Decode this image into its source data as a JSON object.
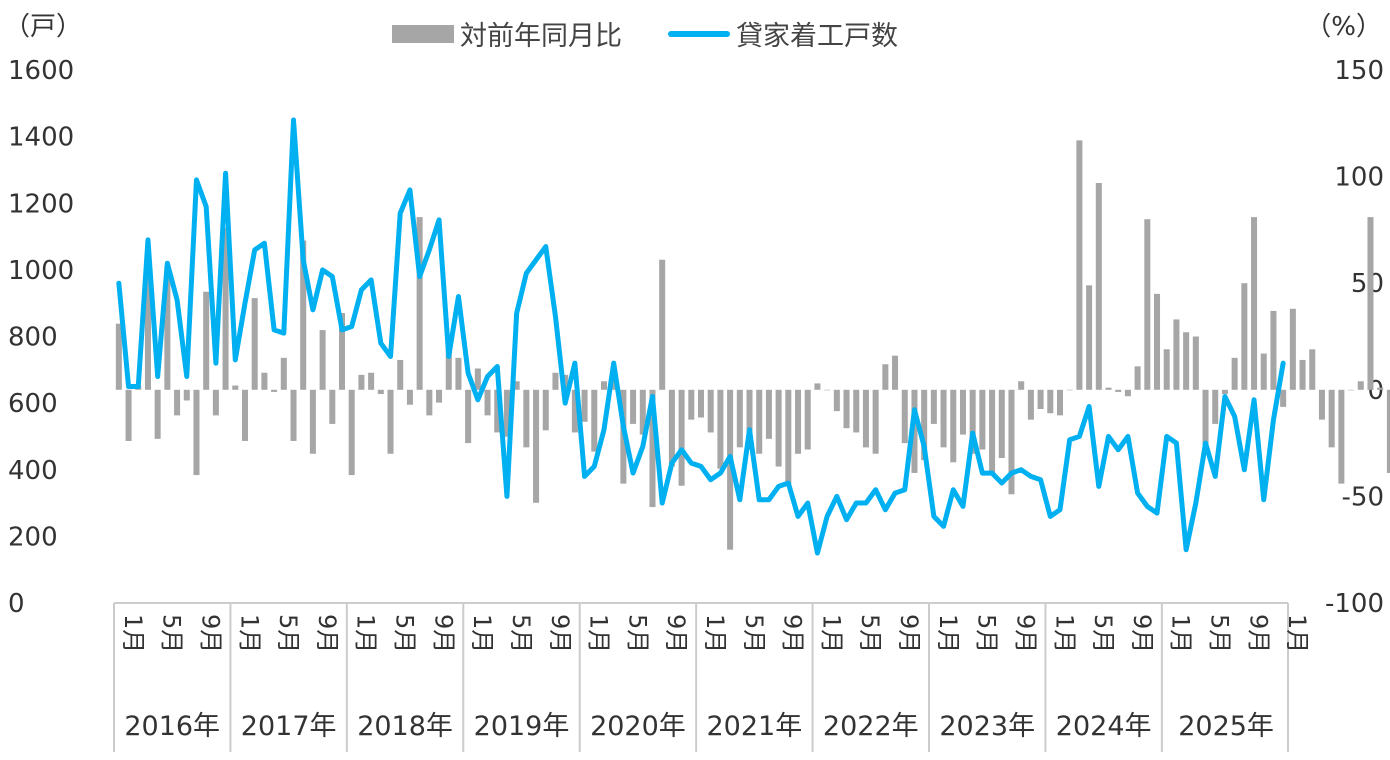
{
  "chart_data": {
    "type": "bar+line",
    "legend": {
      "bar_label": "対前年同月比",
      "line_label": "貸家着工戸数",
      "placement": "top-center"
    },
    "colors": {
      "bar": "#a6a6a6",
      "line": "#00b0f0",
      "axis": "#cccccc",
      "text": "#333333"
    },
    "left_axis": {
      "unit": "（戸）",
      "min": 0,
      "max": 1600,
      "ticks": [
        "0",
        "200",
        "400",
        "600",
        "800",
        "1000",
        "1200",
        "1400",
        "1600"
      ]
    },
    "right_axis": {
      "unit": "（%）",
      "min": -100,
      "max": 150,
      "ticks": [
        "-100",
        "-50",
        "0",
        "50",
        "100",
        "150"
      ]
    },
    "years": [
      {
        "label": "2016年",
        "months": 12
      },
      {
        "label": "2017年",
        "months": 12
      },
      {
        "label": "2018年",
        "months": 12
      },
      {
        "label": "2019年",
        "months": 12
      },
      {
        "label": "2020年",
        "months": 12
      },
      {
        "label": "2021年",
        "months": 12
      },
      {
        "label": "2022年",
        "months": 12
      },
      {
        "label": "2023年",
        "months": 12
      },
      {
        "label": "2024年",
        "months": 12
      },
      {
        "label": "2025年",
        "months": 12
      }
    ],
    "month_tick_labels": {
      "interval_months": 4,
      "labels": [
        "1月",
        "5月",
        "9月"
      ],
      "extra_final_label": "1月"
    },
    "series": [
      {
        "name": "貸家着工戸数",
        "axis": "left",
        "type": "line",
        "values": [
          960,
          650,
          650,
          1090,
          680,
          1020,
          910,
          680,
          1270,
          1190,
          720,
          1290,
          730,
          900,
          1060,
          1080,
          820,
          810,
          1450,
          1030,
          880,
          1000,
          980,
          820,
          830,
          940,
          970,
          780,
          740,
          1170,
          1240,
          980,
          1060,
          1150,
          740,
          920,
          690,
          610,
          680,
          710,
          320,
          870,
          990,
          1030,
          1070,
          860,
          600,
          720,
          380,
          410,
          520,
          720,
          530,
          390,
          470,
          620,
          300,
          420,
          460,
          420,
          410,
          370,
          390,
          440,
          310,
          520,
          310,
          310,
          350,
          360,
          260,
          300,
          150,
          260,
          320,
          250,
          300,
          300,
          340,
          280,
          330,
          340,
          580,
          470,
          260,
          230,
          340,
          290,
          510,
          390,
          390,
          360,
          390,
          400,
          380,
          370,
          260,
          280,
          490,
          500,
          590,
          350,
          500,
          460,
          500,
          330,
          290,
          270,
          500,
          480,
          160,
          300,
          480,
          380,
          620,
          560,
          400,
          610,
          310,
          550,
          720
        ]
      },
      {
        "name": "対前年同月比",
        "axis": "right",
        "type": "bar",
        "values": [
          31,
          -24,
          2,
          62,
          -23,
          58,
          -12,
          -5,
          -40,
          46,
          -12,
          76,
          2,
          -24,
          43,
          8,
          -1,
          15,
          -24,
          70,
          -30,
          28,
          -16,
          36,
          -40,
          7,
          8,
          -2,
          -30,
          14,
          -7,
          81,
          -12,
          -6,
          22,
          15,
          -25,
          10,
          -12,
          -20,
          -22,
          4,
          -27,
          -53,
          -19,
          8,
          7,
          -20,
          -15,
          -29,
          4,
          5,
          -44,
          -16,
          -21,
          -55,
          61,
          -36,
          -45,
          -14,
          -13,
          -20,
          -37,
          -75,
          -27,
          -28,
          -30,
          -23,
          -36,
          -44,
          -30,
          -28,
          3,
          0,
          -10,
          -18,
          -20,
          -27,
          -30,
          12,
          16,
          -25,
          -39,
          -33,
          -16,
          -27,
          -34,
          -21,
          -30,
          -28,
          -40,
          -32,
          -49,
          4,
          -14,
          -9,
          -11,
          -12,
          0,
          117,
          49,
          97,
          1,
          -1,
          -3,
          11,
          80,
          45,
          19,
          33,
          27,
          25,
          -30,
          -16,
          -2,
          15,
          50,
          81,
          17,
          37,
          -8,
          38,
          14,
          19,
          -14,
          -27,
          -44,
          0,
          4,
          81,
          1,
          -39
        ]
      }
    ]
  }
}
